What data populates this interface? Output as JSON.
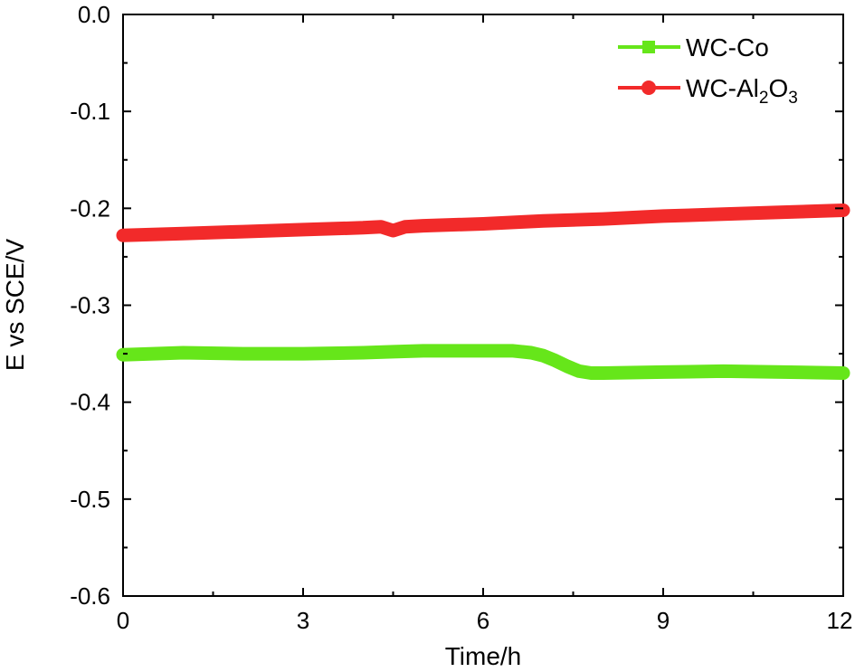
{
  "chart_data": {
    "type": "line",
    "xlabel": "Time/h",
    "ylabel": "E vs SCE/V",
    "xlim": [
      0,
      12
    ],
    "ylim": [
      -0.6,
      0.0
    ],
    "x_ticks": [
      0,
      3,
      6,
      9,
      12
    ],
    "x_tick_labels": [
      "0",
      "3",
      "6",
      "9",
      "12"
    ],
    "y_ticks": [
      0.0,
      -0.1,
      -0.2,
      -0.3,
      -0.4,
      -0.5,
      -0.6
    ],
    "y_tick_labels": [
      "0.0",
      "-0.1",
      "-0.2",
      "-0.3",
      "-0.4",
      "-0.5",
      "-0.6"
    ],
    "grid": false,
    "legend_position": "top-right",
    "series": [
      {
        "name": "WC-Co",
        "legend_main": "WC-Co",
        "color": "#66e61a",
        "marker": "square",
        "x": [
          0,
          0.5,
          1,
          2,
          3,
          4,
          4.5,
          5,
          6,
          6.5,
          6.8,
          7.0,
          7.2,
          7.4,
          7.6,
          7.8,
          8,
          9,
          10,
          11,
          12
        ],
        "values": [
          -0.351,
          -0.35,
          -0.349,
          -0.35,
          -0.35,
          -0.349,
          -0.348,
          -0.347,
          -0.347,
          -0.347,
          -0.349,
          -0.352,
          -0.357,
          -0.363,
          -0.368,
          -0.37,
          -0.37,
          -0.369,
          -0.368,
          -0.369,
          -0.37
        ]
      },
      {
        "name": "WC-Al2O3",
        "legend_main": "WC-Al",
        "legend_sub1": "2",
        "legend_mid": "O",
        "legend_sub2": "3",
        "color": "#f22a2a",
        "marker": "circle",
        "x": [
          0,
          1,
          2,
          3,
          4,
          4.3,
          4.5,
          4.7,
          5,
          6,
          7,
          8,
          9,
          10,
          11,
          12
        ],
        "values": [
          -0.228,
          -0.226,
          -0.224,
          -0.222,
          -0.22,
          -0.219,
          -0.223,
          -0.219,
          -0.218,
          -0.216,
          -0.213,
          -0.211,
          -0.208,
          -0.206,
          -0.204,
          -0.202
        ]
      }
    ]
  }
}
